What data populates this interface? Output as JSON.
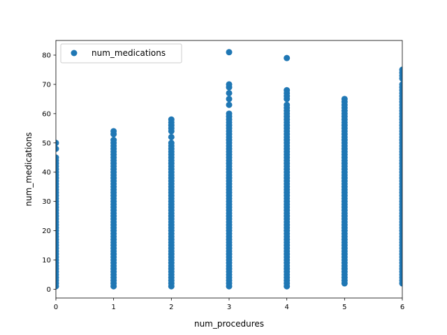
{
  "chart_data": {
    "type": "scatter",
    "xlabel": "num_procedures",
    "ylabel": "num_medications",
    "xlim": [
      0,
      6
    ],
    "ylim": [
      -3,
      85
    ],
    "xticks": [
      0,
      1,
      2,
      3,
      4,
      5,
      6
    ],
    "yticks": [
      0,
      10,
      20,
      30,
      40,
      50,
      60,
      70,
      80
    ],
    "xtick_labels": [
      "0",
      "1",
      "2",
      "3",
      "4",
      "5",
      "6"
    ],
    "ytick_labels": [
      "0",
      "10",
      "20",
      "30",
      "40",
      "50",
      "60",
      "70",
      "80"
    ],
    "grid": false,
    "legend_position": "upper-left",
    "series": [
      {
        "name": "num_medications",
        "color": "#1f77b4",
        "marker": "circle",
        "columns": [
          {
            "x": 0,
            "min": 1,
            "max": 45,
            "outliers": [
              48,
              50
            ]
          },
          {
            "x": 1,
            "min": 1,
            "max": 51,
            "outliers": [
              53,
              54
            ]
          },
          {
            "x": 2,
            "min": 1,
            "max": 50,
            "outliers": [
              52,
              54,
              55,
              56,
              57,
              58
            ]
          },
          {
            "x": 3,
            "min": 1,
            "max": 60,
            "outliers": [
              63,
              65,
              67,
              69,
              70,
              81
            ]
          },
          {
            "x": 4,
            "min": 1,
            "max": 63,
            "outliers": [
              65,
              66,
              67,
              68,
              79
            ]
          },
          {
            "x": 5,
            "min": 2,
            "max": 63,
            "outliers": [
              64,
              65
            ]
          },
          {
            "x": 6,
            "min": 2,
            "max": 70,
            "outliers": [
              72,
              73,
              74,
              75
            ]
          }
        ]
      }
    ]
  }
}
